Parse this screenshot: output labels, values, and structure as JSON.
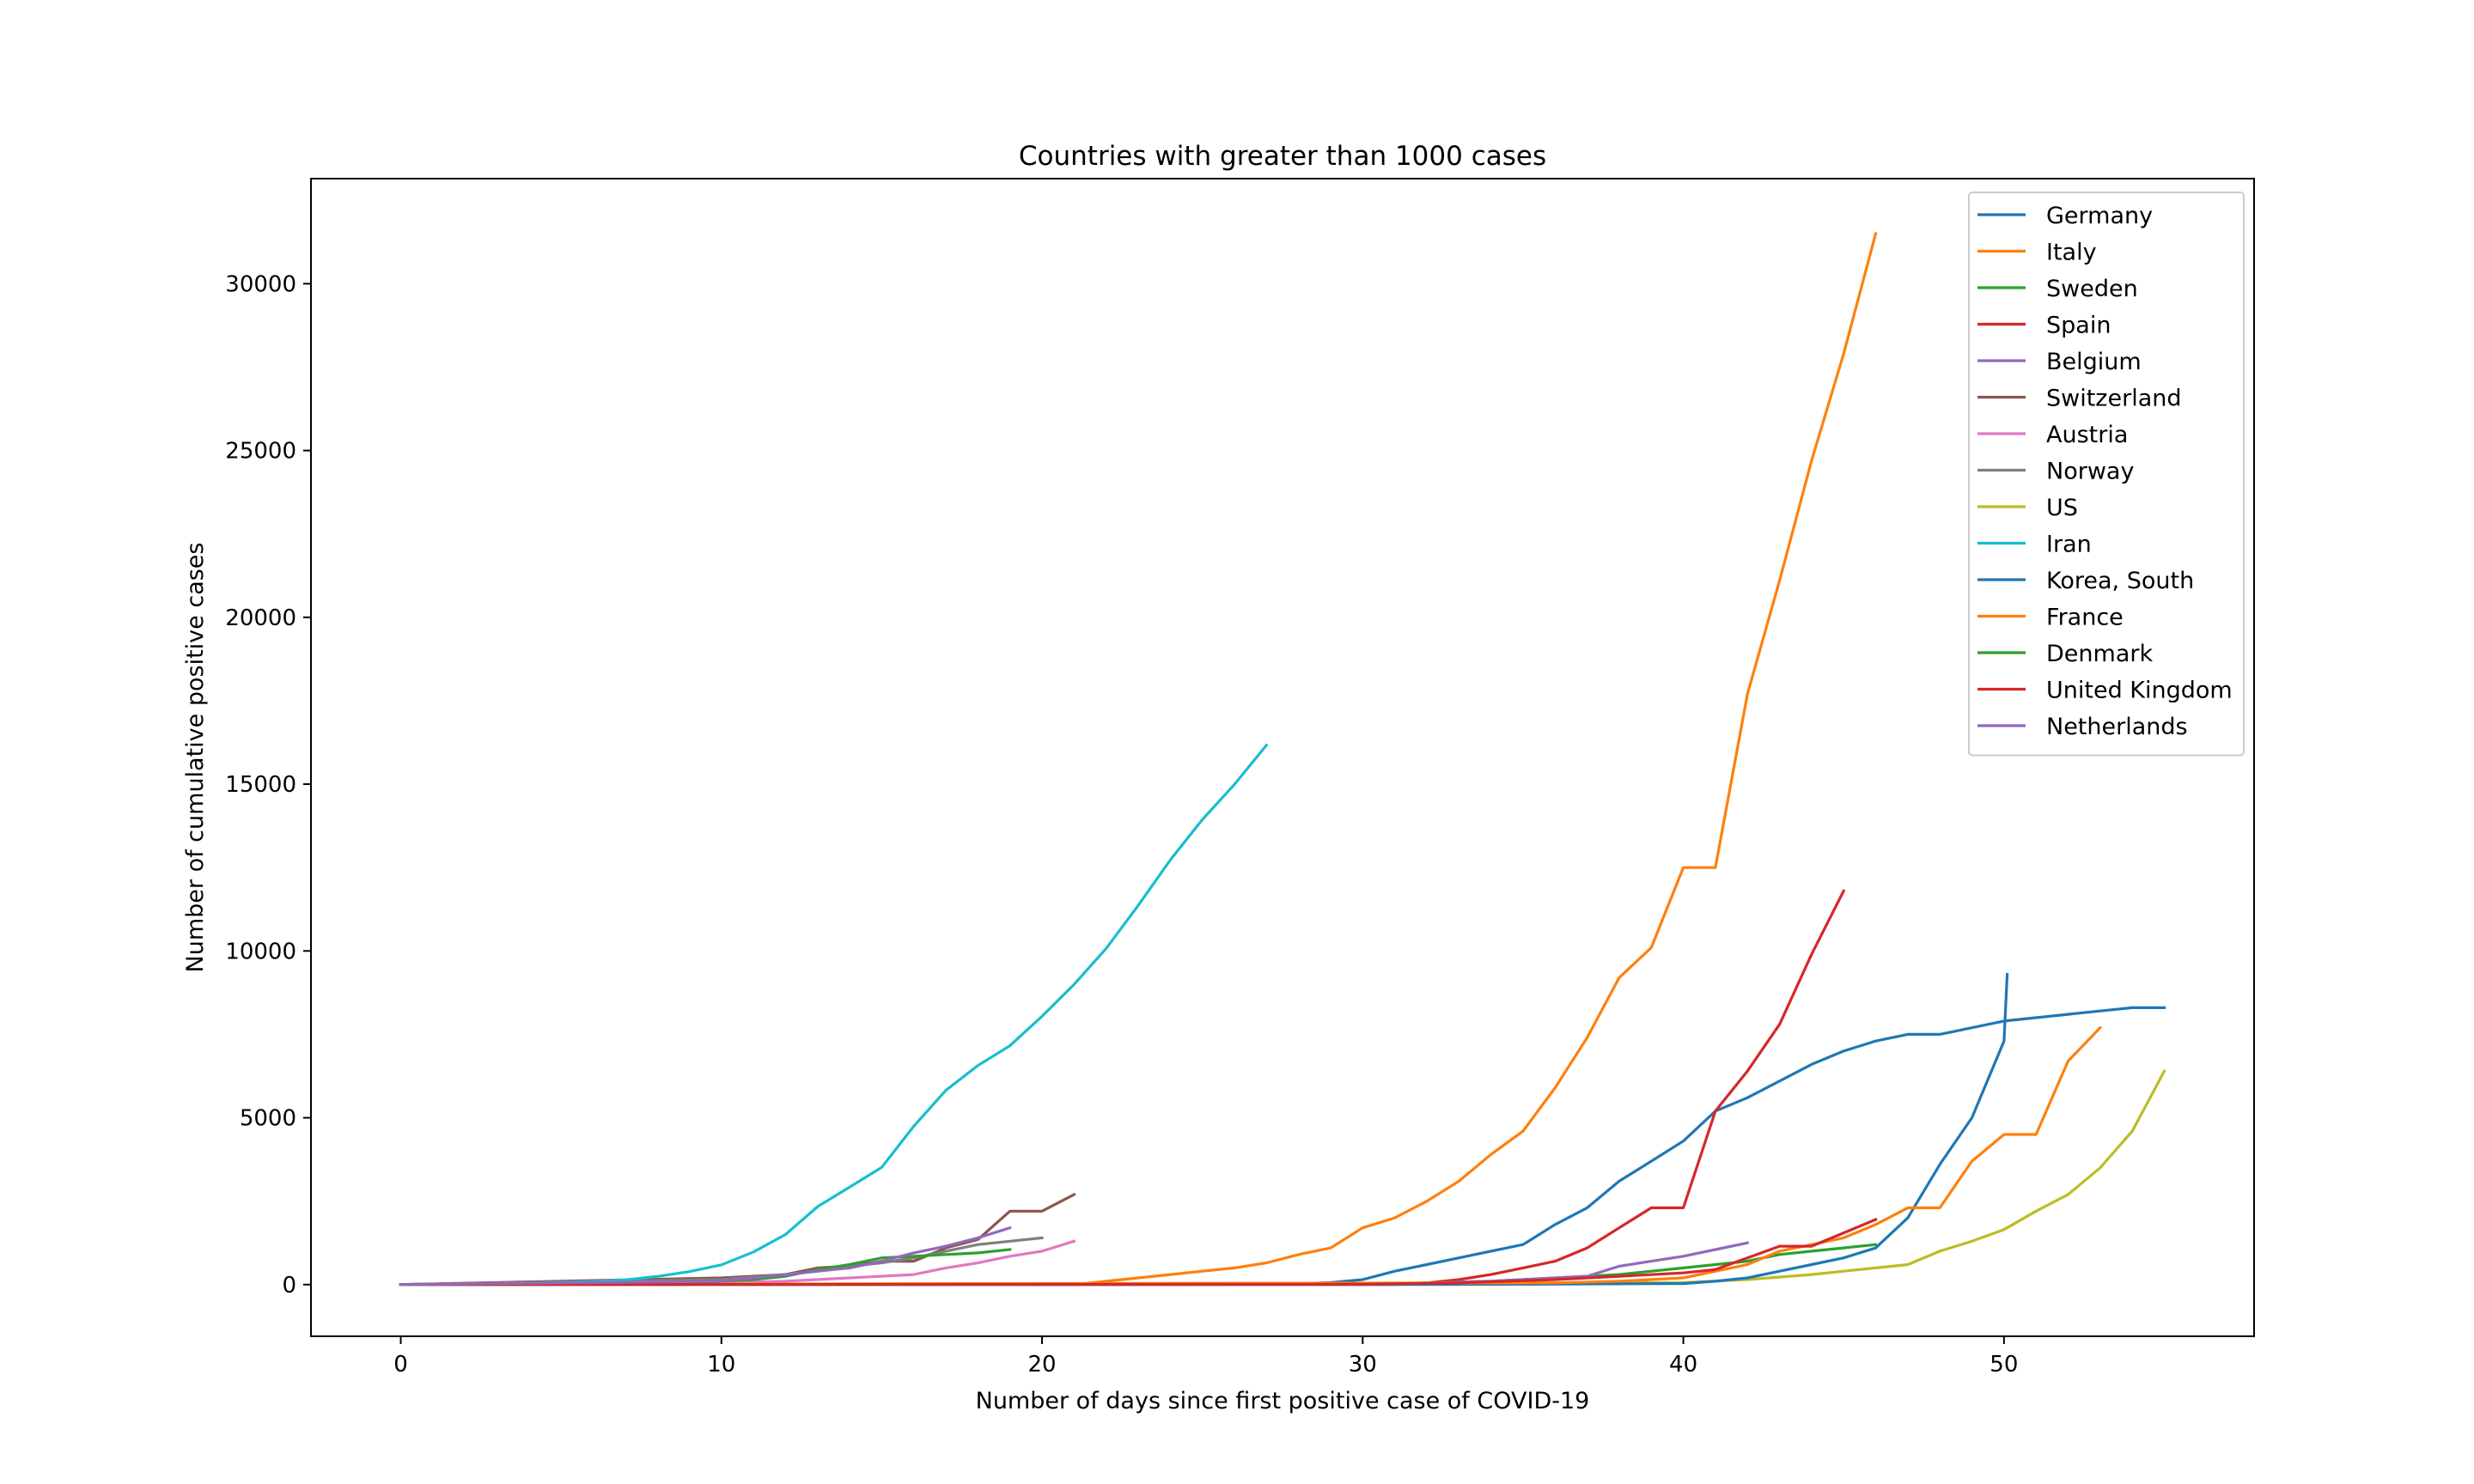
{
  "chart_data": {
    "type": "line",
    "title": "Countries with greater than 1000 cases",
    "xlabel": "Number of days since first positive case of COVID-19",
    "ylabel": "Number of cumulative positive cases",
    "xlim": [
      -2.8,
      57.8
    ],
    "ylim": [
      -1550,
      33150
    ],
    "xticks": [
      0,
      10,
      20,
      30,
      40,
      50
    ],
    "yticks": [
      0,
      5000,
      10000,
      15000,
      20000,
      25000,
      30000
    ],
    "grid": false,
    "legend_position": "top-right",
    "series": [
      {
        "name": "Germany",
        "color": "#1f77b4",
        "points": [
          [
            0,
            1
          ],
          [
            5,
            5
          ],
          [
            10,
            16
          ],
          [
            20,
            16
          ],
          [
            28,
            30
          ],
          [
            29,
            60
          ],
          [
            30,
            150
          ],
          [
            31,
            400
          ],
          [
            32,
            600
          ],
          [
            33,
            800
          ],
          [
            34,
            1000
          ],
          [
            35,
            1200
          ],
          [
            36,
            1800
          ],
          [
            37,
            2300
          ],
          [
            38,
            3100
          ],
          [
            39,
            3700
          ],
          [
            40,
            4300
          ],
          [
            41,
            5200
          ],
          [
            42,
            5600
          ],
          [
            43,
            6100
          ],
          [
            44,
            6600
          ],
          [
            45,
            7000
          ],
          [
            46,
            7300
          ],
          [
            47,
            7500
          ],
          [
            48,
            7500
          ],
          [
            49,
            7700
          ],
          [
            50,
            7900
          ],
          [
            51,
            8000
          ],
          [
            52,
            8100
          ],
          [
            53,
            8200
          ],
          [
            54,
            8300
          ],
          [
            55,
            8300
          ]
        ]
      },
      {
        "name": "Italy",
        "color": "#ff7f0e",
        "points": [
          [
            0,
            2
          ],
          [
            21,
            3
          ],
          [
            22,
            100
          ],
          [
            23,
            200
          ],
          [
            24,
            300
          ],
          [
            25,
            400
          ],
          [
            26,
            500
          ],
          [
            27,
            650
          ],
          [
            28,
            900
          ],
          [
            29,
            1100
          ],
          [
            30,
            1700
          ],
          [
            31,
            2000
          ],
          [
            32,
            2500
          ],
          [
            33,
            3100
          ],
          [
            34,
            3900
          ],
          [
            35,
            4600
          ],
          [
            36,
            5900
          ],
          [
            37,
            7400
          ],
          [
            38,
            9200
          ],
          [
            39,
            10100
          ],
          [
            40,
            12500
          ],
          [
            41,
            12500
          ],
          [
            42,
            17700
          ],
          [
            43,
            21100
          ],
          [
            44,
            24700
          ],
          [
            45,
            27900
          ],
          [
            46,
            31500
          ]
        ]
      },
      {
        "name": "Sweden",
        "color": "#2ca02c",
        "points": [
          [
            0,
            1
          ],
          [
            29,
            1
          ],
          [
            30,
            10
          ],
          [
            32,
            50
          ],
          [
            34,
            100
          ],
          [
            36,
            200
          ],
          [
            37,
            250
          ],
          [
            38,
            300
          ],
          [
            39,
            400
          ],
          [
            40,
            500
          ],
          [
            41,
            600
          ],
          [
            42,
            700
          ],
          [
            43,
            900
          ],
          [
            44,
            1000
          ],
          [
            45,
            1100
          ],
          [
            46,
            1200
          ]
        ]
      },
      {
        "name": "Spain",
        "color": "#d62728",
        "points": [
          [
            0,
            1
          ],
          [
            30,
            1
          ],
          [
            31,
            5
          ],
          [
            32,
            50
          ],
          [
            33,
            150
          ],
          [
            34,
            300
          ],
          [
            35,
            500
          ],
          [
            36,
            700
          ],
          [
            37,
            1100
          ],
          [
            38,
            1700
          ],
          [
            39,
            2300
          ],
          [
            40,
            2300
          ],
          [
            41,
            5200
          ],
          [
            42,
            6400
          ],
          [
            43,
            7800
          ],
          [
            44,
            9900
          ],
          [
            45,
            11800
          ]
        ]
      },
      {
        "name": "Belgium",
        "color": "#9467bd",
        "points": [
          [
            0,
            1
          ],
          [
            30,
            1
          ],
          [
            32,
            50
          ],
          [
            34,
            100
          ],
          [
            35,
            150
          ],
          [
            36,
            200
          ],
          [
            37,
            250
          ],
          [
            38,
            550
          ],
          [
            39,
            700
          ],
          [
            40,
            850
          ],
          [
            41,
            1050
          ],
          [
            42,
            1250
          ]
        ]
      },
      {
        "name": "Switzerland",
        "color": "#8c564b",
        "points": [
          [
            0,
            1
          ],
          [
            10,
            200
          ],
          [
            12,
            300
          ],
          [
            13,
            500
          ],
          [
            14,
            550
          ],
          [
            15,
            700
          ],
          [
            16,
            700
          ],
          [
            17,
            1100
          ],
          [
            18,
            1350
          ],
          [
            19,
            2200
          ],
          [
            20,
            2200
          ],
          [
            21,
            2700
          ]
        ]
      },
      {
        "name": "Austria",
        "color": "#e377c2",
        "points": [
          [
            0,
            1
          ],
          [
            10,
            50
          ],
          [
            12,
            100
          ],
          [
            14,
            200
          ],
          [
            16,
            300
          ],
          [
            17,
            500
          ],
          [
            18,
            650
          ],
          [
            19,
            850
          ],
          [
            20,
            1000
          ],
          [
            21,
            1300
          ]
        ]
      },
      {
        "name": "Norway",
        "color": "#7f7f7f",
        "points": [
          [
            0,
            1
          ],
          [
            10,
            150
          ],
          [
            12,
            300
          ],
          [
            13,
            400
          ],
          [
            14,
            550
          ],
          [
            15,
            650
          ],
          [
            16,
            800
          ],
          [
            17,
            1000
          ],
          [
            18,
            1200
          ],
          [
            19,
            1300
          ],
          [
            20,
            1400
          ]
        ]
      },
      {
        "name": "US",
        "color": "#bcbd22",
        "points": [
          [
            0,
            1
          ],
          [
            40,
            60
          ],
          [
            42,
            150
          ],
          [
            44,
            300
          ],
          [
            45,
            400
          ],
          [
            46,
            500
          ],
          [
            47,
            600
          ],
          [
            48,
            1000
          ],
          [
            49,
            1300
          ],
          [
            50,
            1650
          ],
          [
            51,
            2200
          ],
          [
            52,
            2700
          ],
          [
            53,
            3500
          ],
          [
            54,
            4600
          ],
          [
            55,
            6400
          ]
        ]
      },
      {
        "name": "Iran",
        "color": "#17becf",
        "points": [
          [
            0,
            2
          ],
          [
            2,
            18
          ],
          [
            3,
            28
          ],
          [
            4,
            43
          ],
          [
            5,
            61
          ],
          [
            6,
            95
          ],
          [
            7,
            139
          ],
          [
            8,
            245
          ],
          [
            9,
            388
          ],
          [
            10,
            593
          ],
          [
            11,
            978
          ],
          [
            12,
            1501
          ],
          [
            13,
            2336
          ],
          [
            14,
            2922
          ],
          [
            15,
            3513
          ],
          [
            16,
            4747
          ],
          [
            17,
            5823
          ],
          [
            18,
            6566
          ],
          [
            19,
            7161
          ],
          [
            20,
            8042
          ],
          [
            21,
            9000
          ],
          [
            22,
            10075
          ],
          [
            23,
            11364
          ],
          [
            24,
            12729
          ],
          [
            25,
            13938
          ],
          [
            26,
            14991
          ],
          [
            27,
            16169
          ]
        ]
      },
      {
        "name": "Korea, South",
        "color": "#1f77b4",
        "points": [
          [
            0,
            1
          ],
          [
            30,
            1
          ],
          [
            35,
            10
          ],
          [
            40,
            30
          ],
          [
            41,
            100
          ],
          [
            42,
            200
          ],
          [
            43,
            400
          ],
          [
            44,
            600
          ],
          [
            45,
            800
          ],
          [
            46,
            1100
          ],
          [
            47,
            2000
          ],
          [
            48,
            3600
          ],
          [
            49,
            5000
          ],
          [
            50,
            7300
          ],
          [
            50.1,
            9300
          ]
        ]
      },
      {
        "name": "France",
        "color": "#ff7f0e",
        "points": [
          [
            0,
            2
          ],
          [
            36,
            50
          ],
          [
            38,
            100
          ],
          [
            40,
            200
          ],
          [
            42,
            600
          ],
          [
            43,
            1000
          ],
          [
            44,
            1200
          ],
          [
            45,
            1400
          ],
          [
            46,
            1800
          ],
          [
            47,
            2300
          ],
          [
            48,
            2300
          ],
          [
            49,
            3700
          ],
          [
            50,
            4500
          ],
          [
            51,
            4500
          ],
          [
            52,
            6700
          ],
          [
            53,
            7700
          ]
        ]
      },
      {
        "name": "Denmark",
        "color": "#2ca02c",
        "points": [
          [
            0,
            1
          ],
          [
            9,
            10
          ],
          [
            10,
            100
          ],
          [
            11,
            150
          ],
          [
            12,
            250
          ],
          [
            13,
            450
          ],
          [
            14,
            600
          ],
          [
            15,
            800
          ],
          [
            16,
            850
          ],
          [
            17,
            900
          ],
          [
            18,
            950
          ],
          [
            19,
            1050
          ]
        ]
      },
      {
        "name": "United Kingdom",
        "color": "#d62728",
        "points": [
          [
            0,
            2
          ],
          [
            30,
            10
          ],
          [
            33,
            50
          ],
          [
            36,
            150
          ],
          [
            38,
            250
          ],
          [
            40,
            350
          ],
          [
            41,
            450
          ],
          [
            42,
            800
          ],
          [
            43,
            1150
          ],
          [
            44,
            1150
          ],
          [
            45,
            1550
          ],
          [
            46,
            1950
          ]
        ]
      },
      {
        "name": "Netherlands",
        "color": "#9467bd",
        "points": [
          [
            0,
            1
          ],
          [
            10,
            100
          ],
          [
            12,
            300
          ],
          [
            13,
            400
          ],
          [
            14,
            500
          ],
          [
            15,
            700
          ],
          [
            16,
            950
          ],
          [
            17,
            1150
          ],
          [
            18,
            1400
          ],
          [
            19,
            1700
          ]
        ]
      }
    ]
  }
}
